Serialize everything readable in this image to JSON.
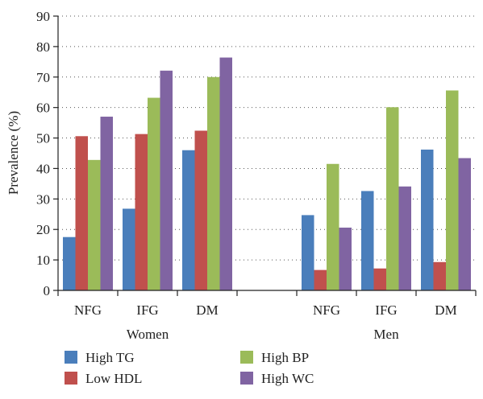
{
  "chart_data": {
    "type": "bar",
    "ylabel": "Prevalence (%)",
    "xlabel": "",
    "ylim": [
      0,
      90
    ],
    "ytick_step": 10,
    "grid": true,
    "legend_position": "bottom-left",
    "groups": [
      {
        "label": "Women",
        "categories": [
          "NFG",
          "IFG",
          "DM"
        ]
      },
      {
        "label": "Men",
        "categories": [
          "NFG",
          "IFG",
          "DM"
        ]
      }
    ],
    "categories": [
      "NFG",
      "IFG",
      "DM",
      "",
      "NFG",
      "IFG",
      "DM"
    ],
    "series": [
      {
        "name": "High TG",
        "color": "#4a7ebb",
        "values": [
          17.5,
          26.8,
          46.0,
          null,
          24.7,
          32.6,
          46.2
        ]
      },
      {
        "name": "Low HDL",
        "color": "#c0504d",
        "values": [
          50.6,
          51.3,
          52.4,
          null,
          6.7,
          7.2,
          9.3
        ]
      },
      {
        "name": "High BP",
        "color": "#9bbb59",
        "values": [
          42.8,
          63.2,
          70.0,
          null,
          41.5,
          60.1,
          65.6
        ]
      },
      {
        "name": "High WC",
        "color": "#8064a2",
        "values": [
          57.0,
          72.1,
          76.4,
          null,
          20.6,
          34.1,
          43.4
        ]
      }
    ]
  }
}
